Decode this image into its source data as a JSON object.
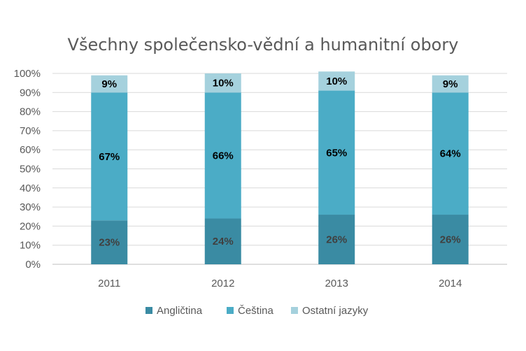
{
  "chart_data": {
    "type": "bar",
    "stacked": true,
    "title": "Všechny společensko-vědní  a humanitní obory",
    "categories": [
      "2011",
      "2012",
      "2013",
      "2014"
    ],
    "series": [
      {
        "name": "Angličtina",
        "color": "#3a8ba3",
        "label_color": "#404040",
        "values": [
          23,
          24,
          26,
          26
        ],
        "labels": [
          "23%",
          "24%",
          "26%",
          "26%"
        ]
      },
      {
        "name": "Čeština",
        "color": "#4bacc6",
        "label_color": "#000000",
        "values": [
          67,
          66,
          65,
          64
        ],
        "labels": [
          "67%",
          "66%",
          "65%",
          "64%"
        ]
      },
      {
        "name": "Ostatní jazyky",
        "color": "#a5d1dd",
        "label_color": "#000000",
        "values": [
          9,
          10,
          10,
          9
        ],
        "labels": [
          "9%",
          "10%",
          "10%",
          "9%"
        ]
      }
    ],
    "ylim": [
      0,
      100
    ],
    "yticks": [
      "0%",
      "10%",
      "20%",
      "30%",
      "40%",
      "50%",
      "60%",
      "70%",
      "80%",
      "90%",
      "100%"
    ],
    "grid": true,
    "legend_position": "bottom"
  }
}
